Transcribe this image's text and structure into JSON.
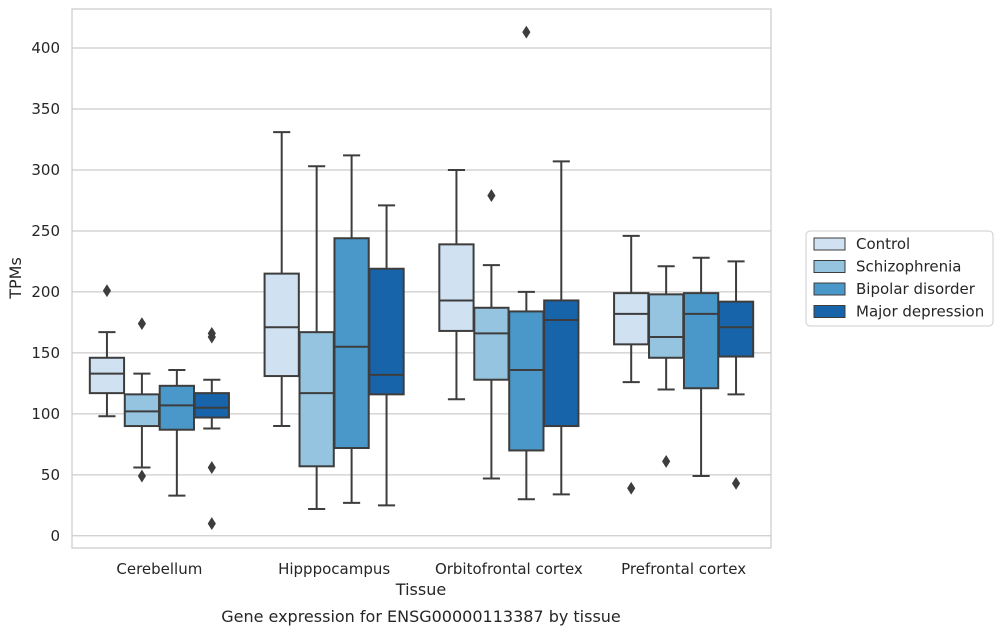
{
  "chart_data": {
    "type": "boxplot",
    "title": "",
    "caption": "Gene expression for ENSG00000113387 by tissue",
    "xlabel": "Tissue",
    "ylabel": "TPMs",
    "ylim": [
      -10,
      432
    ],
    "yticks": [
      0,
      50,
      100,
      150,
      200,
      250,
      300,
      350,
      400
    ],
    "grid": "horizontal",
    "legend_position": "right",
    "categories": [
      "Cerebellum",
      "Hipppocampus",
      "Orbitofrontal cortex",
      "Prefrontal cortex"
    ],
    "series": [
      {
        "name": "Control",
        "color": "#d0e1f2",
        "boxes": [
          {
            "whislo": 98,
            "q1": 117,
            "med": 133,
            "q3": 146,
            "whishi": 167,
            "fliers": [
              201
            ]
          },
          {
            "whislo": 90,
            "q1": 131,
            "med": 171,
            "q3": 215,
            "whishi": 331,
            "fliers": []
          },
          {
            "whislo": 112,
            "q1": 168,
            "med": 193,
            "q3": 239,
            "whishi": 300,
            "fliers": []
          },
          {
            "whislo": 126,
            "q1": 157,
            "med": 182,
            "q3": 199,
            "whishi": 246,
            "fliers": [
              39
            ]
          }
        ]
      },
      {
        "name": "Schizophrenia",
        "color": "#94c4df",
        "boxes": [
          {
            "whislo": 56,
            "q1": 90,
            "med": 102,
            "q3": 116,
            "whishi": 133,
            "fliers": [
              49,
              174
            ]
          },
          {
            "whislo": 22,
            "q1": 57,
            "med": 117,
            "q3": 167,
            "whishi": 303,
            "fliers": []
          },
          {
            "whislo": 47,
            "q1": 128,
            "med": 166,
            "q3": 187,
            "whishi": 222,
            "fliers": [
              279
            ]
          },
          {
            "whislo": 120,
            "q1": 146,
            "med": 163,
            "q3": 198,
            "whishi": 221,
            "fliers": [
              61
            ]
          }
        ]
      },
      {
        "name": "Bipolar disorder",
        "color": "#4a98c9",
        "boxes": [
          {
            "whislo": 33,
            "q1": 87,
            "med": 107,
            "q3": 123,
            "whishi": 136,
            "fliers": []
          },
          {
            "whislo": 27,
            "q1": 72,
            "med": 155,
            "q3": 244,
            "whishi": 312,
            "fliers": []
          },
          {
            "whislo": 30,
            "q1": 70,
            "med": 136,
            "q3": 184,
            "whishi": 200,
            "fliers": [
              413
            ]
          },
          {
            "whislo": 49,
            "q1": 121,
            "med": 182,
            "q3": 199,
            "whishi": 228,
            "fliers": []
          }
        ]
      },
      {
        "name": "Major depression",
        "color": "#1764ab",
        "boxes": [
          {
            "whislo": 88,
            "q1": 97,
            "med": 105,
            "q3": 117,
            "whishi": 128,
            "fliers": [
              10,
              56,
              163,
              166
            ]
          },
          {
            "whislo": 25,
            "q1": 116,
            "med": 132,
            "q3": 219,
            "whishi": 271,
            "fliers": []
          },
          {
            "whislo": 34,
            "q1": 90,
            "med": 177,
            "q3": 193,
            "whishi": 307,
            "fliers": []
          },
          {
            "whislo": 116,
            "q1": 147,
            "med": 171,
            "q3": 192,
            "whishi": 225,
            "fliers": [
              43
            ]
          }
        ]
      }
    ]
  }
}
